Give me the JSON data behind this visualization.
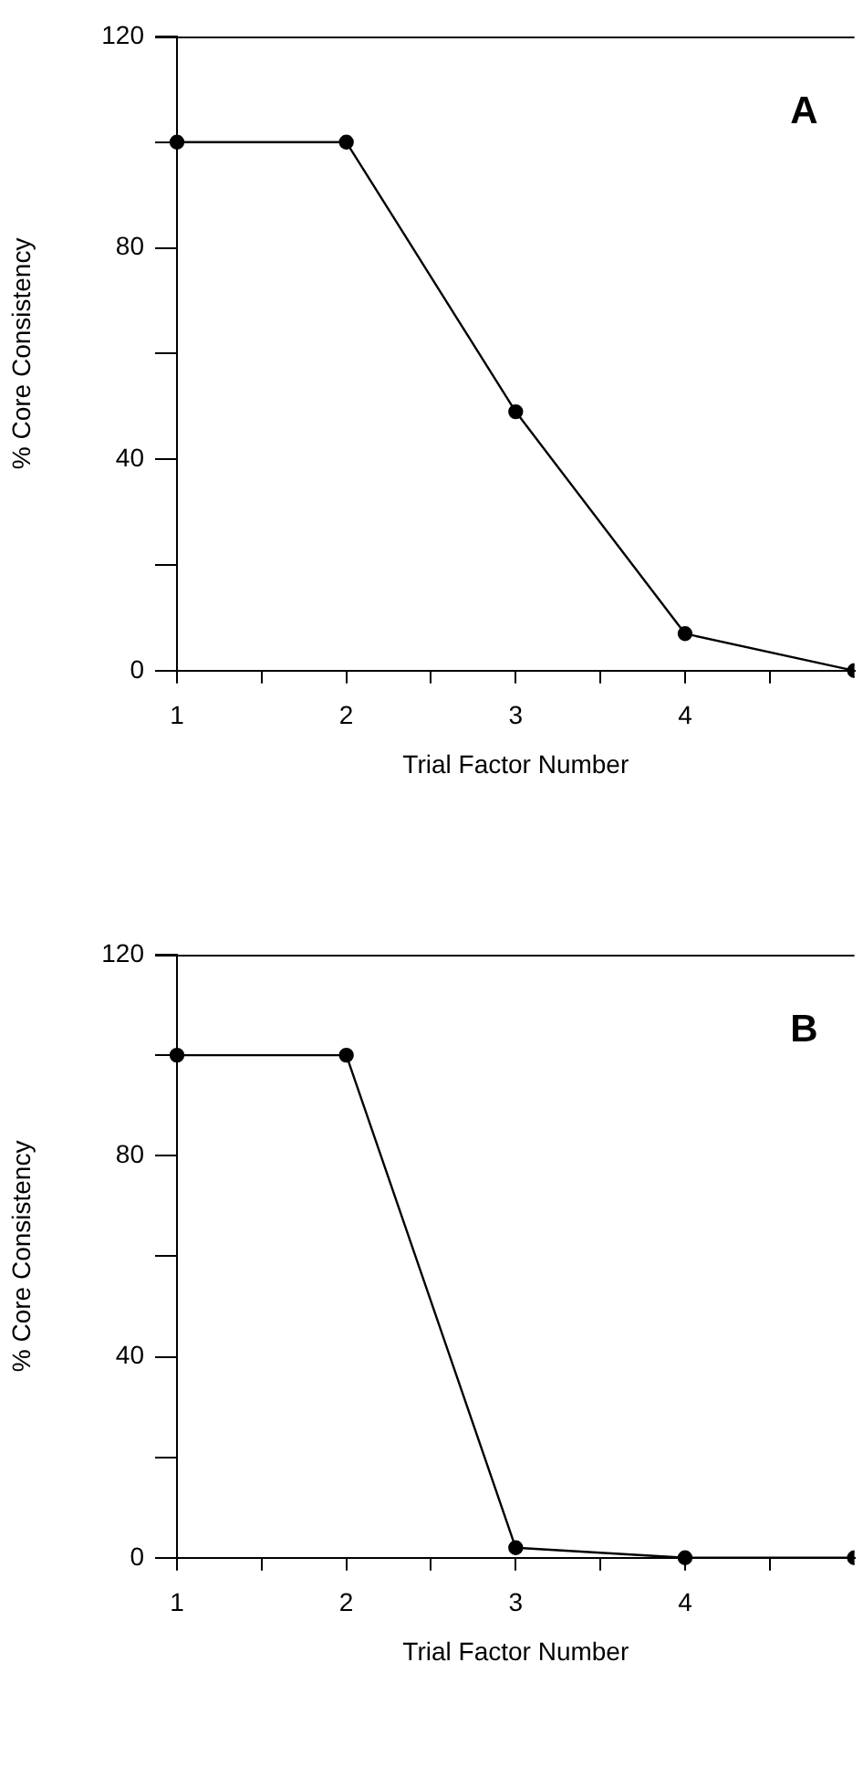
{
  "chart_data": [
    {
      "type": "line",
      "title": "A",
      "xlabel": "Trial Factor Number",
      "ylabel": "% Core Consistency",
      "x": [
        1,
        2,
        3,
        4,
        5
      ],
      "series": [
        {
          "color": "#000000",
          "values": [
            100,
            100,
            49,
            7,
            0
          ]
        }
      ],
      "xlim": [
        1,
        5
      ],
      "xticks": [
        1,
        {
          "value": 1.5,
          "label": null
        },
        2,
        {
          "value": 2.5,
          "label": null
        },
        3,
        {
          "value": 3.5,
          "label": null
        },
        4,
        {
          "value": 4.5,
          "label": null
        }
      ],
      "ylim": [
        0,
        120
      ],
      "yticks": [
        0,
        {
          "value": 20,
          "label": null
        },
        40,
        {
          "value": 60,
          "label": null
        },
        80,
        {
          "value": 100,
          "label": null
        },
        120
      ],
      "marker": "circle",
      "line_style": "solid",
      "grid": false,
      "legend": false
    },
    {
      "type": "line",
      "title": "B",
      "xlabel": "Trial Factor Number",
      "ylabel": "% Core Consistency",
      "x": [
        1,
        2,
        3,
        4,
        5
      ],
      "series": [
        {
          "color": "#000000",
          "values": [
            100,
            100,
            2,
            0,
            0
          ]
        }
      ],
      "xlim": [
        1,
        5
      ],
      "xticks": [
        1,
        {
          "value": 1.5,
          "label": null
        },
        2,
        {
          "value": 2.5,
          "label": null
        },
        3,
        {
          "value": 3.5,
          "label": null
        },
        4,
        {
          "value": 4.5,
          "label": null
        }
      ],
      "ylim": [
        0,
        120
      ],
      "yticks": [
        0,
        {
          "value": 20,
          "label": null
        },
        40,
        {
          "value": 60,
          "label": null
        },
        80,
        {
          "value": 100,
          "label": null
        },
        120
      ],
      "marker": "circle",
      "line_style": "solid",
      "grid": false,
      "legend": false
    }
  ]
}
